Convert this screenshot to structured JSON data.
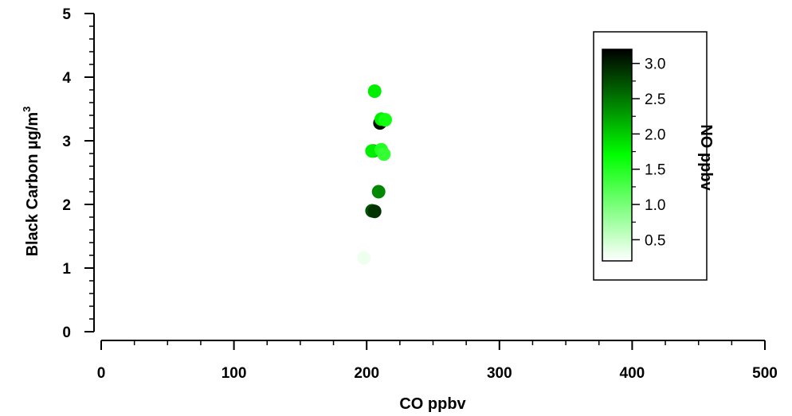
{
  "chart_data": {
    "type": "scatter",
    "xlabel": "CO ppbv",
    "ylabel": "Black Carbon µg/m",
    "ylabel_superscript": "3",
    "xlim": [
      0,
      500
    ],
    "ylim": [
      0,
      5
    ],
    "x_ticks": [
      "0",
      "100",
      "200",
      "300",
      "400",
      "500"
    ],
    "y_ticks": [
      "0",
      "1",
      "2",
      "3",
      "4",
      "5"
    ],
    "grid": false,
    "colorbar": {
      "label": "NO ppbv",
      "range": [
        0.2,
        3.2
      ],
      "ticks": [
        "0.5",
        "1.0",
        "1.5",
        "2.0",
        "2.5",
        "3.0"
      ],
      "color_low": "#ffffff",
      "color_mid": "#00ff00",
      "color_high": "#000000",
      "placement": "top-right"
    },
    "points": [
      {
        "x": 198,
        "y": 1.16,
        "c": 0.3
      },
      {
        "x": 204,
        "y": 1.9,
        "c": 2.7
      },
      {
        "x": 206,
        "y": 1.89,
        "c": 2.9
      },
      {
        "x": 209,
        "y": 2.2,
        "c": 2.4
      },
      {
        "x": 205,
        "y": 2.84,
        "c": 2.3
      },
      {
        "x": 204,
        "y": 2.84,
        "c": 1.8
      },
      {
        "x": 211,
        "y": 2.86,
        "c": 1.5
      },
      {
        "x": 213,
        "y": 2.79,
        "c": 1.4
      },
      {
        "x": 210,
        "y": 3.28,
        "c": 3.1
      },
      {
        "x": 211,
        "y": 3.34,
        "c": 1.8
      },
      {
        "x": 214,
        "y": 3.33,
        "c": 1.6
      },
      {
        "x": 206,
        "y": 3.78,
        "c": 1.8
      }
    ]
  }
}
